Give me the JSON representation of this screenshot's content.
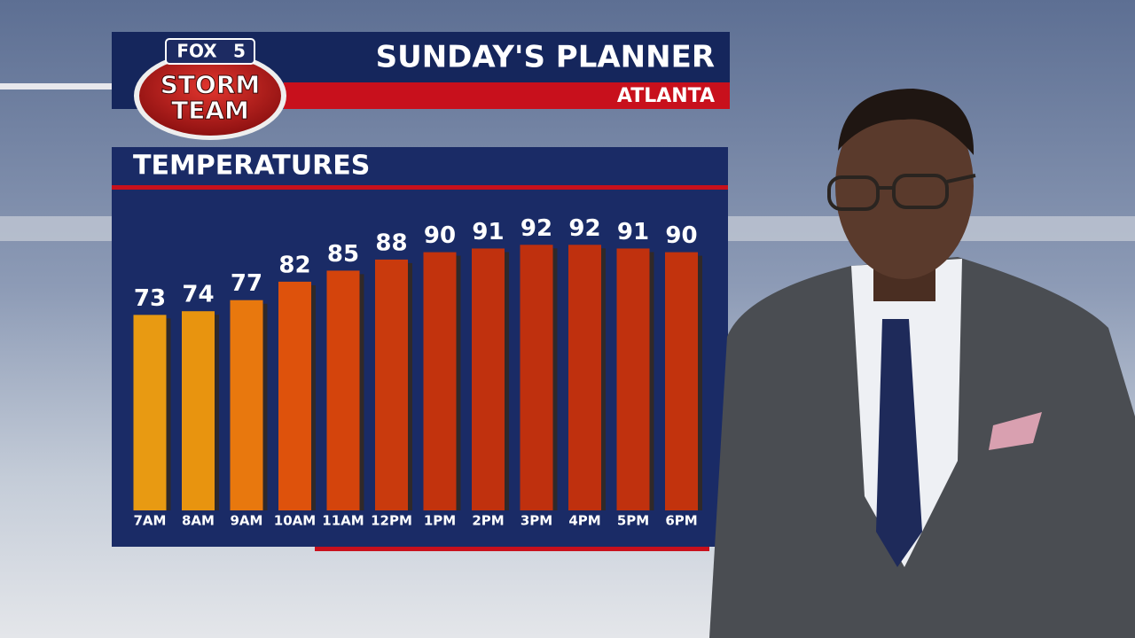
{
  "logo": {
    "brand": "FOX",
    "channel": "5",
    "line1": "STORM",
    "line2": "TEAM"
  },
  "chart_data": {
    "type": "bar",
    "title": "SUNDAY'S PLANNER",
    "subtitle": "ATLANTA",
    "panel_title": "TEMPERATURES",
    "categories": [
      "7AM",
      "8AM",
      "9AM",
      "10AM",
      "11AM",
      "12PM",
      "1PM",
      "2PM",
      "3PM",
      "4PM",
      "5PM",
      "6PM"
    ],
    "values": [
      73,
      74,
      77,
      82,
      85,
      88,
      90,
      91,
      92,
      92,
      91,
      90
    ],
    "colors": [
      "#e89a12",
      "#e8940f",
      "#e8780e",
      "#de520c",
      "#d4440c",
      "#c93a0d",
      "#c2330d",
      "#c0310e",
      "#bf300e",
      "#bf300e",
      "#c0310e",
      "#c2330d"
    ],
    "ylim": [
      20,
      106
    ]
  }
}
